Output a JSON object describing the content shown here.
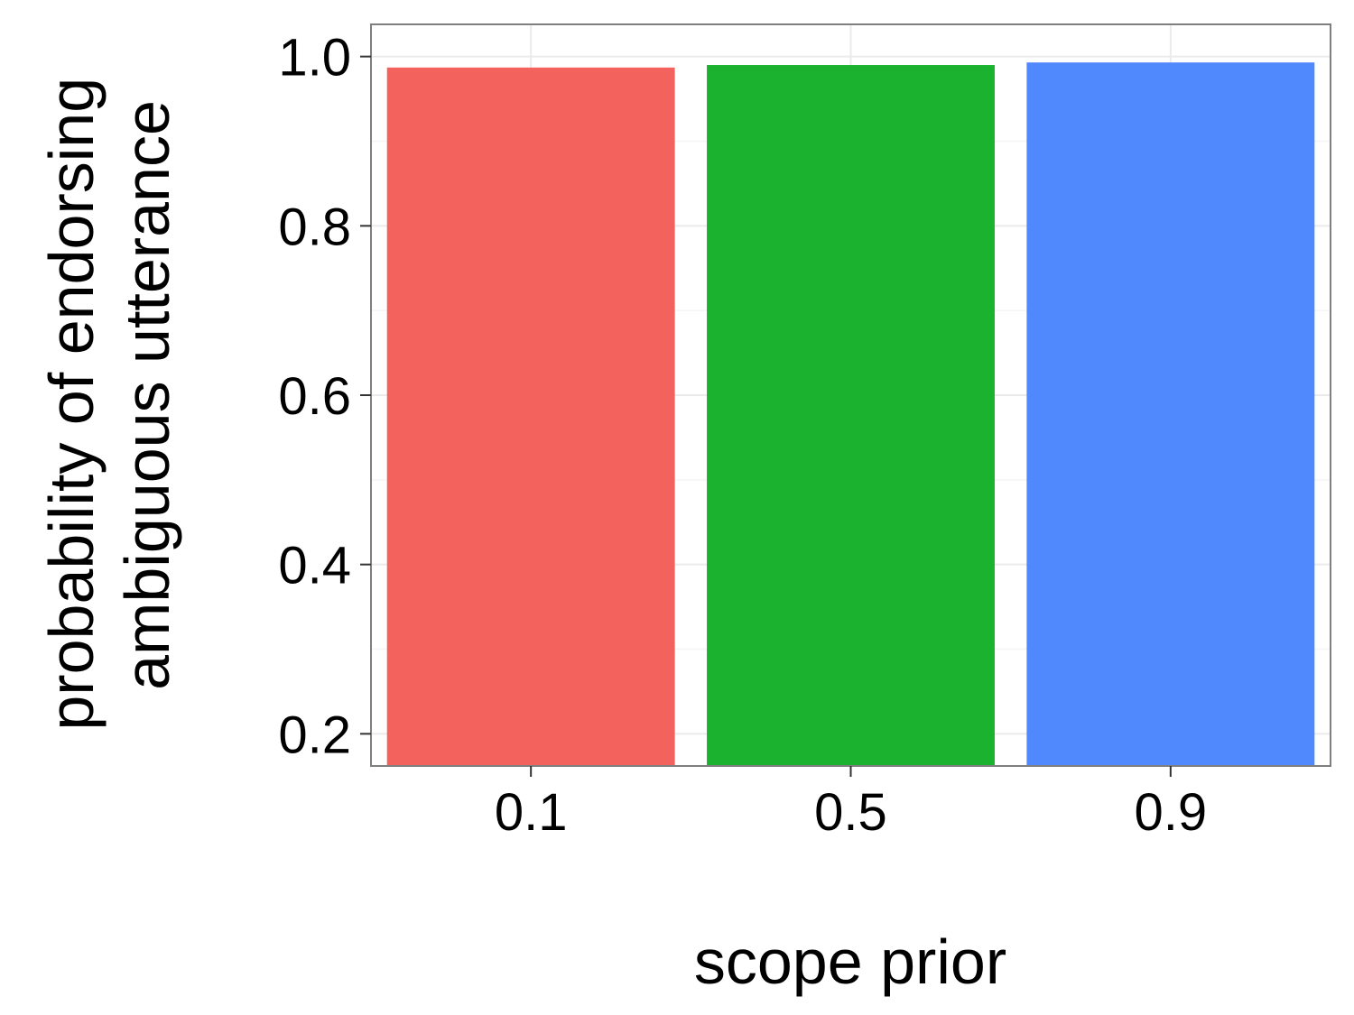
{
  "chart_data": {
    "type": "bar",
    "categories": [
      "0.1",
      "0.5",
      "0.9"
    ],
    "values": [
      0.987,
      0.99,
      0.993
    ],
    "colors": [
      "#F3625D",
      "#1AB22F",
      "#5088FD"
    ],
    "title": "",
    "xlabel": "scope prior",
    "ylabel_lines": [
      "probability of endorsing",
      "ambiguous utterance"
    ],
    "ylim": [
      0.162,
      1.038
    ],
    "yticks": [
      0.2,
      0.4,
      0.6,
      0.8,
      1.0
    ],
    "ytick_labels": [
      "0.2",
      "0.4",
      "0.6",
      "0.8",
      "1.0"
    ],
    "grid": true,
    "legend": "none",
    "theme": {
      "panel_border": "#7f7f7f",
      "grid_major": "#ebebeb",
      "grid_minor": "#f5f5f5",
      "tick_color": "#333333"
    }
  }
}
